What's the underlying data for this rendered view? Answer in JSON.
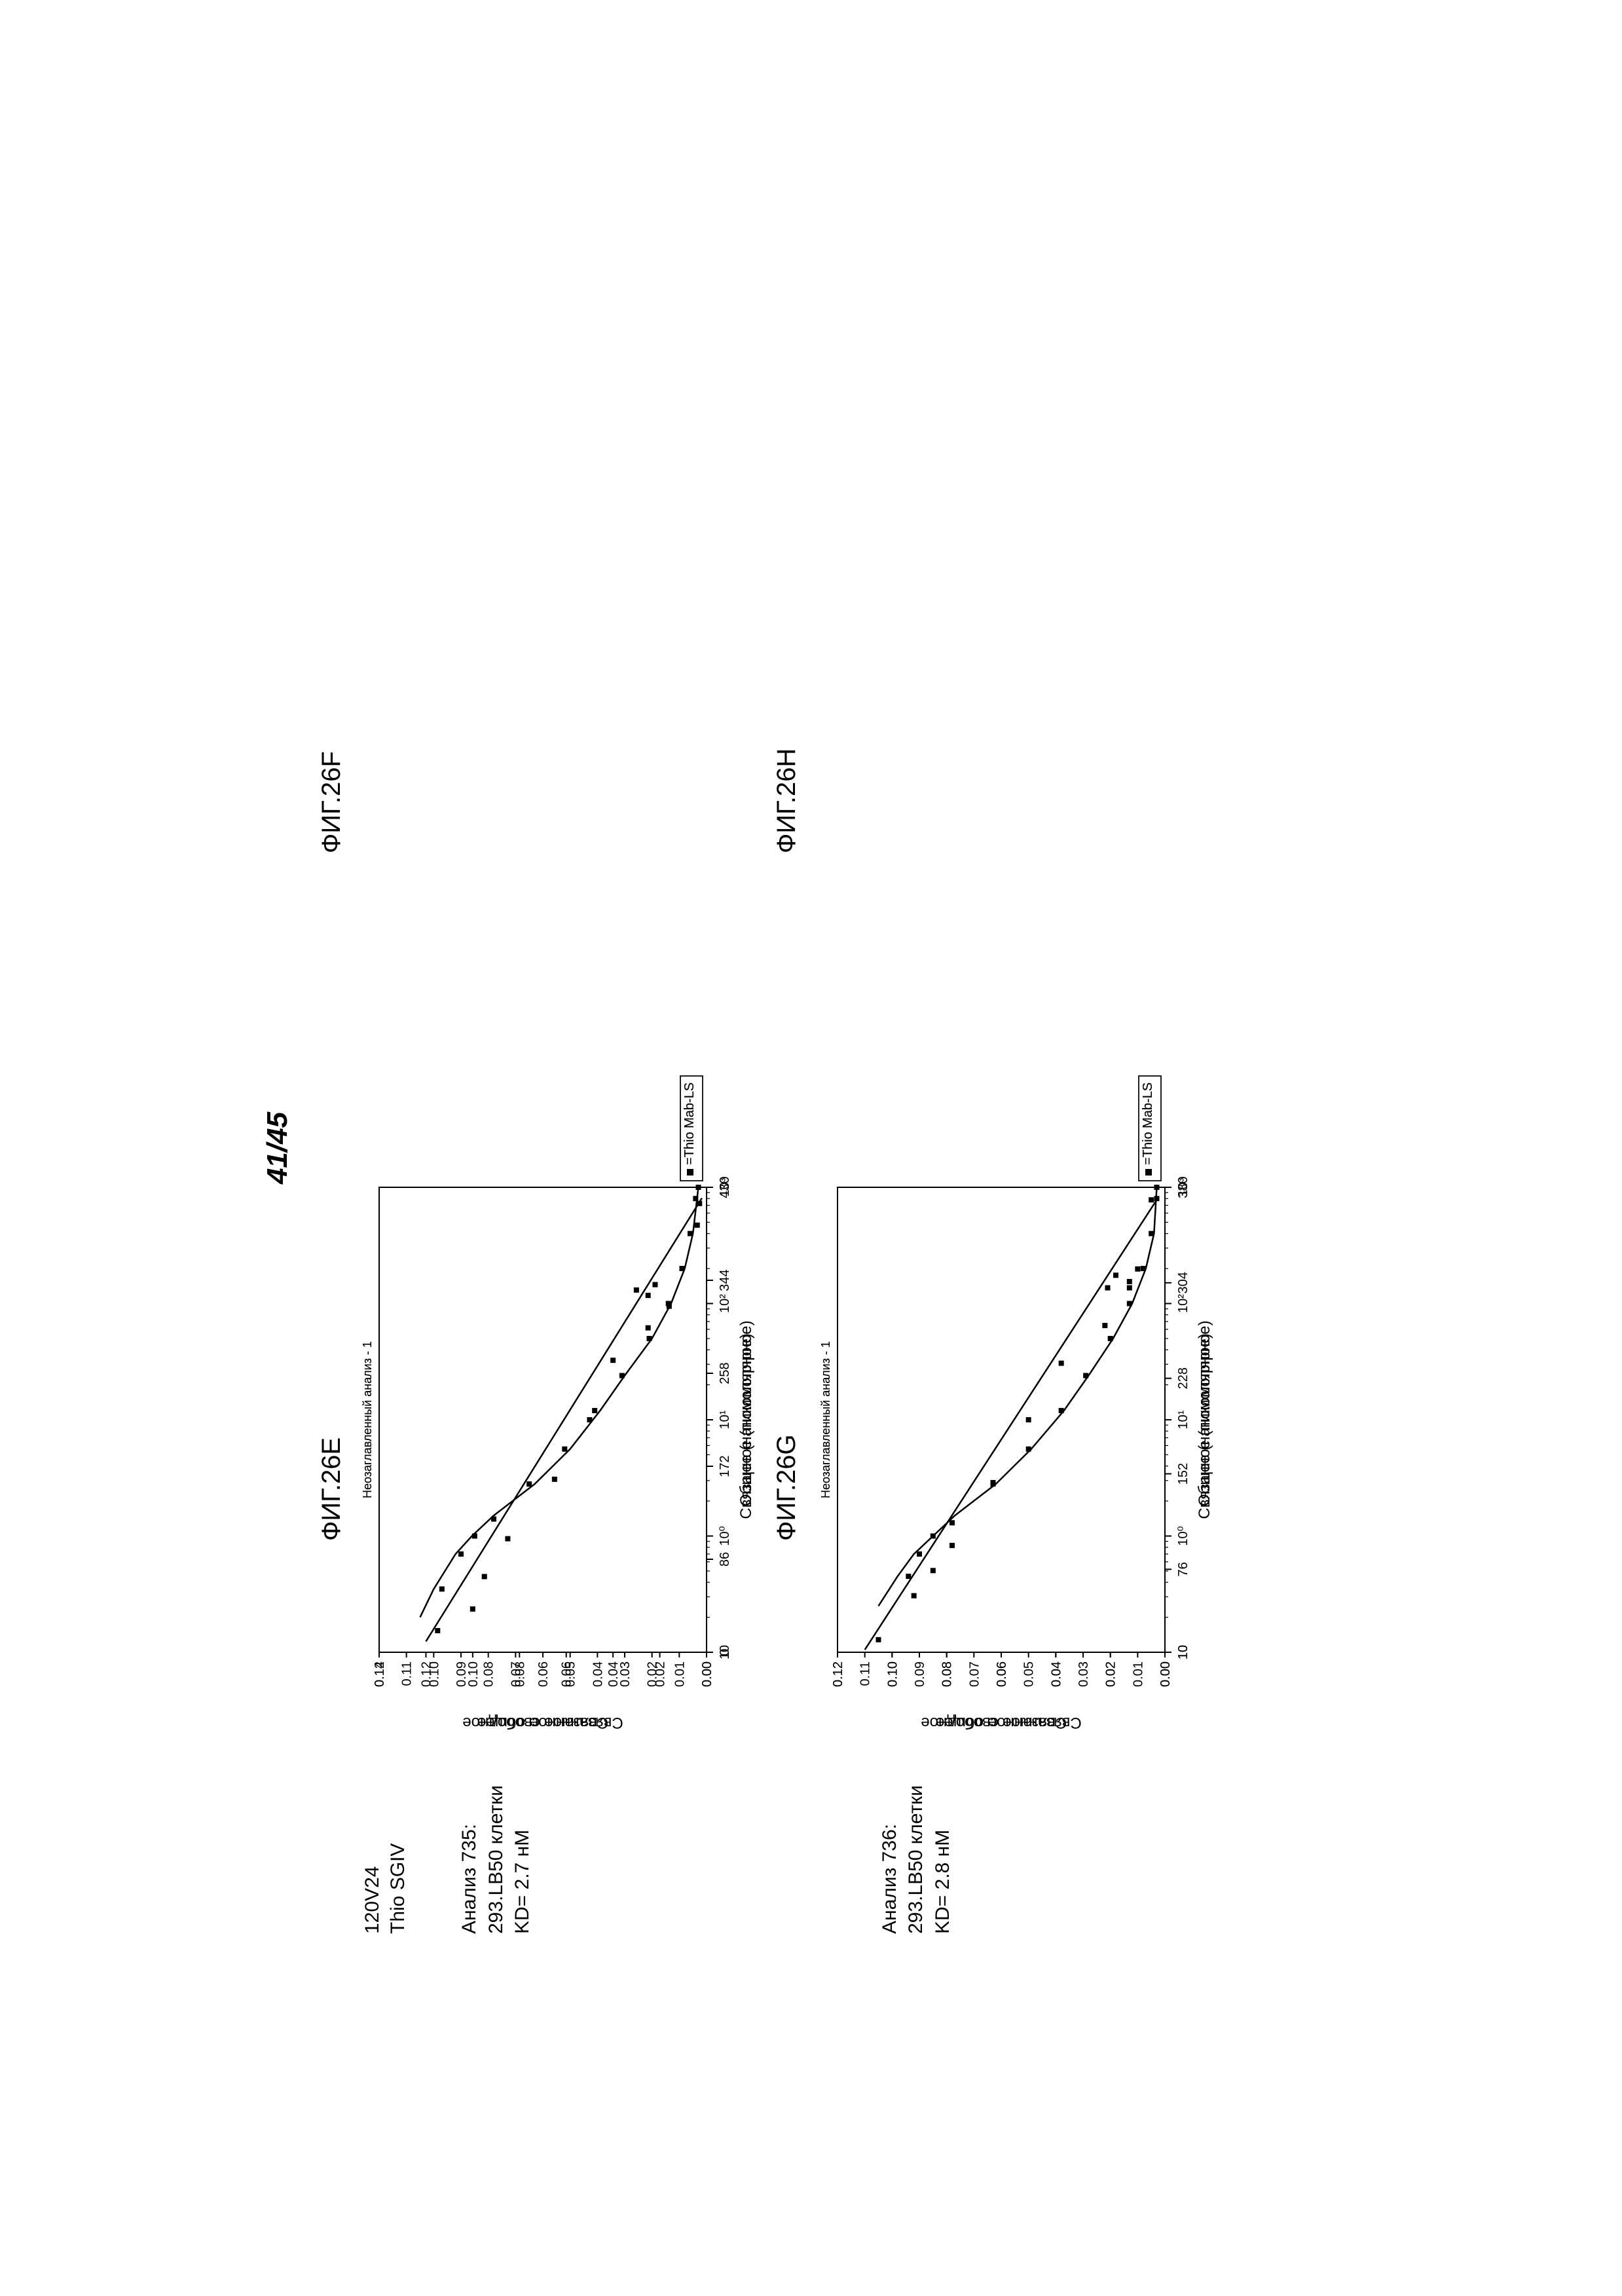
{
  "page_number": "41/45",
  "header": {
    "compound": "120V24",
    "variant": "Thio SGIV"
  },
  "analysis_top": {
    "label": "Анализ 735:",
    "cells": "293.LB50 клетки",
    "kd": "KD= 2.7 нМ"
  },
  "analysis_bottom": {
    "label": "Анализ 736:",
    "cells": "293.LB50 клетки",
    "kd": "KD= 2.8 нМ"
  },
  "figs": {
    "E": {
      "title": "ФИГ.26E"
    },
    "F": {
      "title": "ФИГ.26F"
    },
    "G": {
      "title": "ФИГ.26G"
    },
    "H": {
      "title": "ФИГ.26H"
    }
  },
  "common": {
    "subtitle": "Неозаглавленный анализ - 1",
    "legend_marker": "■",
    "legend_label": "=Thio Mab-LS"
  },
  "chart_E": {
    "type": "scatter-line-logx",
    "ylabel": "Связанное общее",
    "xlabel": "Общее (наномолярное)",
    "yticks": [
      "0.00",
      "0.01",
      "0.02",
      "0.03",
      "0.04",
      "0.05",
      "0.06",
      "0.07",
      "0.08",
      "0.09",
      "0.10",
      "0.11",
      "0.12"
    ],
    "ymin": 0.0,
    "ymax": 0.12,
    "xticks_log": [
      "10",
      "10⁰",
      "10¹",
      "10²",
      "10³"
    ],
    "xmin_exp": -1,
    "xmax_exp": 3,
    "points": [
      [
        0.35,
        0.097
      ],
      [
        0.7,
        0.09
      ],
      [
        1.0,
        0.085
      ],
      [
        1.4,
        0.078
      ],
      [
        2.8,
        0.065
      ],
      [
        5.6,
        0.052
      ],
      [
        12,
        0.041
      ],
      [
        24,
        0.031
      ],
      [
        50,
        0.021
      ],
      [
        100,
        0.014
      ],
      [
        200,
        0.009
      ],
      [
        400,
        0.006
      ],
      [
        800,
        0.004
      ],
      [
        1000,
        0.003
      ]
    ],
    "curve": [
      [
        0.2,
        0.105
      ],
      [
        0.35,
        0.1
      ],
      [
        0.7,
        0.092
      ],
      [
        1.0,
        0.086
      ],
      [
        1.5,
        0.078
      ],
      [
        2.8,
        0.063
      ],
      [
        5.6,
        0.05
      ],
      [
        12,
        0.039
      ],
      [
        24,
        0.03
      ],
      [
        50,
        0.02
      ],
      [
        100,
        0.013
      ],
      [
        200,
        0.008
      ],
      [
        400,
        0.005
      ],
      [
        1000,
        0.003
      ]
    ],
    "marker_size": 8,
    "marker_color": "#000000",
    "line_color": "#000000",
    "line_width": 2.5,
    "axis_color": "#000000",
    "tick_fontsize": 20,
    "label_fontsize": 24
  },
  "chart_F": {
    "type": "scatter-line-linear",
    "ylabel": "Связанное свободное",
    "xlabel": "Связанное (пикомолярное)",
    "yticks": [
      "0.00",
      "0.02",
      "0.04",
      "0.06",
      "0.08",
      "0.10",
      "0.12",
      "0.14"
    ],
    "ymin": 0.0,
    "ymax": 0.14,
    "xticks": [
      "0",
      "86",
      "172",
      "258",
      "344",
      "430"
    ],
    "xmin": 0,
    "xmax": 430,
    "points": [
      [
        20,
        0.115
      ],
      [
        40,
        0.1
      ],
      [
        70,
        0.095
      ],
      [
        105,
        0.085
      ],
      [
        160,
        0.065
      ],
      [
        215,
        0.05
      ],
      [
        270,
        0.04
      ],
      [
        300,
        0.025
      ],
      [
        320,
        0.016
      ],
      [
        330,
        0.025
      ],
      [
        340,
        0.022
      ],
      [
        335,
        0.03
      ],
      [
        395,
        0.004
      ],
      [
        415,
        0.003
      ]
    ],
    "line_start": [
      10,
      0.12
    ],
    "line_end": [
      420,
      0.002
    ],
    "marker_size": 8,
    "marker_color": "#000000",
    "line_color": "#000000",
    "line_width": 2.5,
    "axis_color": "#000000",
    "tick_fontsize": 20,
    "label_fontsize": 24
  },
  "chart_G": {
    "type": "scatter-line-logx",
    "ylabel": "Связанное общее",
    "xlabel": "Общее (наномолярное)",
    "yticks": [
      "0.00",
      "0.01",
      "0.02",
      "0.03",
      "0.04",
      "0.05",
      "0.06",
      "0.07",
      "0.08",
      "0.09",
      "0.10",
      "0.11",
      "0.12"
    ],
    "ymin": 0.0,
    "ymax": 0.12,
    "xticks_log": [
      "10",
      "10⁰",
      "10¹",
      "10²",
      "10³"
    ],
    "xmin_exp": -1,
    "xmax_exp": 3,
    "points": [
      [
        0.45,
        0.094
      ],
      [
        0.7,
        0.09
      ],
      [
        1.0,
        0.085
      ],
      [
        1.3,
        0.078
      ],
      [
        2.8,
        0.063
      ],
      [
        5.6,
        0.05
      ],
      [
        12,
        0.038
      ],
      [
        24,
        0.029
      ],
      [
        50,
        0.02
      ],
      [
        100,
        0.013
      ],
      [
        200,
        0.008
      ],
      [
        400,
        0.005
      ],
      [
        800,
        0.003
      ],
      [
        1000,
        0.003
      ]
    ],
    "curve": [
      [
        0.25,
        0.105
      ],
      [
        0.45,
        0.098
      ],
      [
        0.7,
        0.092
      ],
      [
        1.0,
        0.085
      ],
      [
        1.5,
        0.077
      ],
      [
        2.8,
        0.062
      ],
      [
        5.6,
        0.049
      ],
      [
        12,
        0.037
      ],
      [
        24,
        0.028
      ],
      [
        50,
        0.019
      ],
      [
        100,
        0.012
      ],
      [
        200,
        0.007
      ],
      [
        400,
        0.004
      ],
      [
        1000,
        0.003
      ]
    ],
    "marker_size": 8,
    "marker_color": "#000000",
    "line_color": "#000000",
    "line_width": 2.5,
    "axis_color": "#000000",
    "tick_fontsize": 20,
    "label_fontsize": 24
  },
  "chart_H": {
    "type": "scatter-line-linear",
    "ylabel": "Связанное свободное",
    "xlabel": "Связанное (пикомолярное)",
    "yticks": [
      "0.00",
      "0.02",
      "0.04",
      "0.06",
      "0.08",
      "0.10",
      "0.12"
    ],
    "ymin": 0.0,
    "ymax": 0.12,
    "xticks": [
      "10",
      "76",
      "152",
      "228",
      "304",
      "380"
    ],
    "xmin": 10,
    "xmax": 380,
    "points": [
      [
        20,
        0.105
      ],
      [
        55,
        0.092
      ],
      [
        75,
        0.085
      ],
      [
        95,
        0.078
      ],
      [
        145,
        0.063
      ],
      [
        195,
        0.05
      ],
      [
        240,
        0.038
      ],
      [
        270,
        0.022
      ],
      [
        300,
        0.021
      ],
      [
        300,
        0.013
      ],
      [
        305,
        0.013
      ],
      [
        310,
        0.018
      ],
      [
        315,
        0.01
      ],
      [
        370,
        0.005
      ]
    ],
    "line_start": [
      12,
      0.11
    ],
    "line_end": [
      370,
      0.003
    ],
    "marker_size": 8,
    "marker_color": "#000000",
    "line_color": "#000000",
    "line_width": 2.5,
    "axis_color": "#000000",
    "tick_fontsize": 20,
    "label_fontsize": 24
  }
}
